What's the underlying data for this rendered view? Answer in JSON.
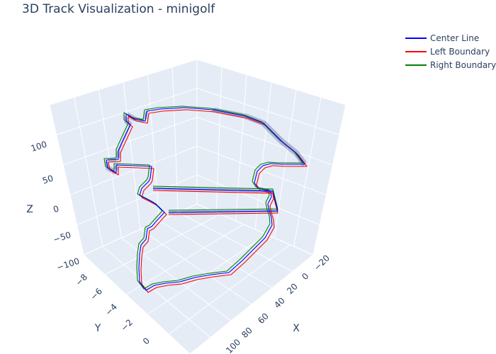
{
  "chart_data": {
    "type": "line",
    "title": "3D Track Visualization - minigolf",
    "axes": {
      "x": {
        "label": "X",
        "ticks": [
          "−20",
          "0",
          "20",
          "40",
          "60",
          "80",
          "100"
        ]
      },
      "y": {
        "label": "Y",
        "ticks": [
          "−8",
          "−6",
          "−4",
          "−2",
          "0"
        ]
      },
      "z": {
        "label": "Z",
        "ticks": [
          "−100",
          "−50",
          "0",
          "50",
          "100"
        ]
      }
    },
    "grid": true,
    "legend_position": "top-right",
    "series": [
      {
        "name": "Center Line",
        "color": "#0000ff"
      },
      {
        "name": "Left Boundary",
        "color": "#ff0000"
      },
      {
        "name": "Right Boundary",
        "color": "#008000"
      }
    ],
    "fill_color": "#1f2a6e"
  }
}
